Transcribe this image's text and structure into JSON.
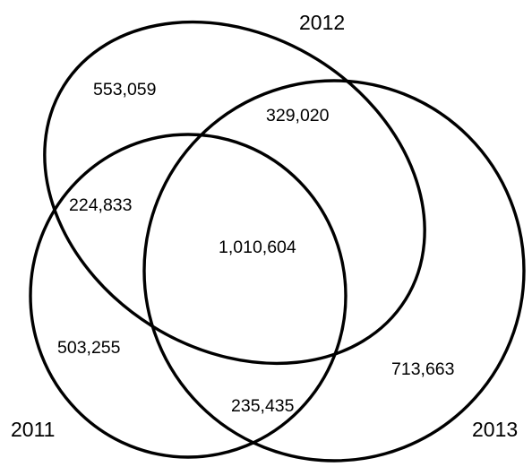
{
  "style": {
    "stroke_color": "#000000",
    "background": "#ffffff",
    "text_color": "#000000"
  },
  "sets": {
    "set_2011": {
      "label": "2011"
    },
    "set_2012": {
      "label": "2012"
    },
    "set_2013": {
      "label": "2013"
    }
  },
  "regions": {
    "only_2012": "553,059",
    "only_2011": "503,255",
    "only_2013": "713,663",
    "intersection_2011_2012": "224,833",
    "intersection_2012_2013": "329,020",
    "intersection_2011_2013": "235,435",
    "intersection_all": "1,010,604"
  }
}
